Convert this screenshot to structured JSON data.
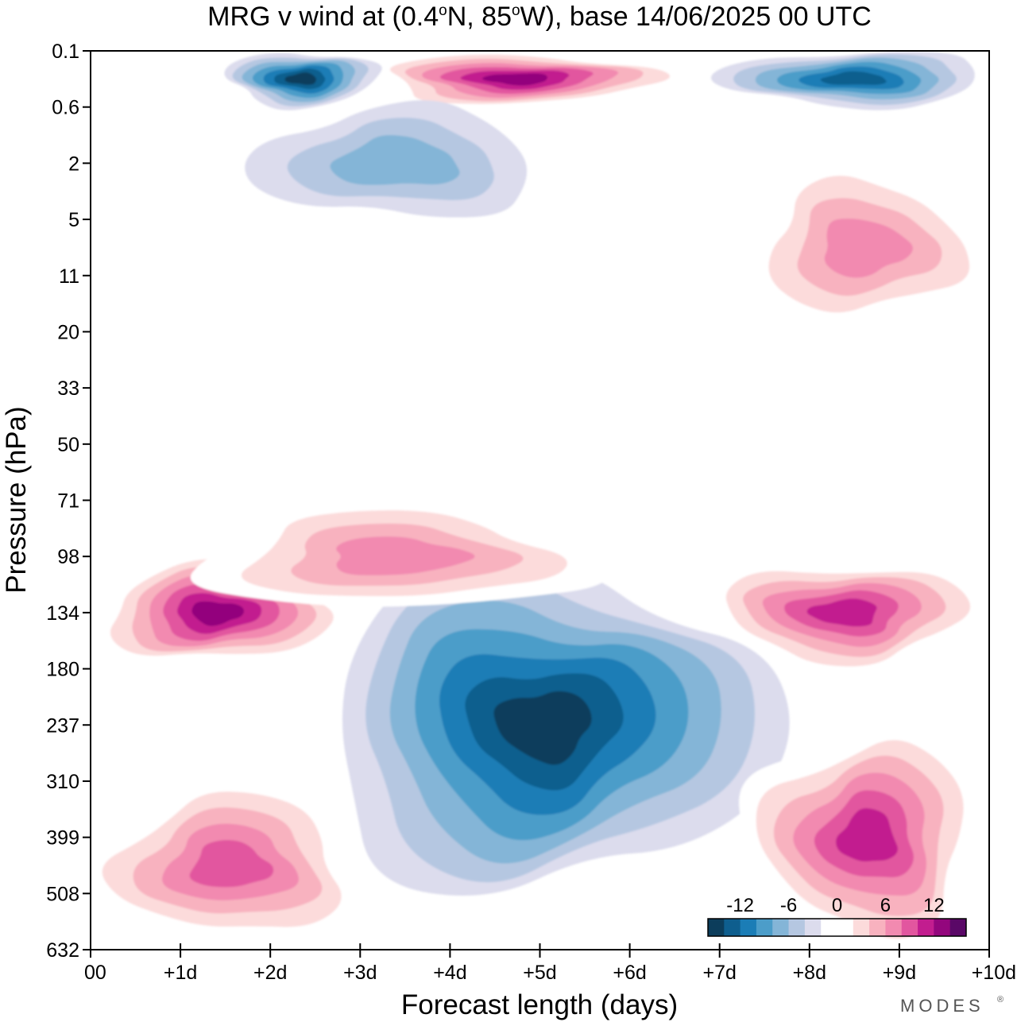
{
  "chart_data": {
    "type": "heatmap",
    "title_parts": {
      "prefix": "MRG v wind at (0.4",
      "deg1": "o",
      "mid": "N, 85",
      "deg2": "o",
      "suffix": "W),  base 14/06/2025  00 UTC"
    },
    "xlabel": "Forecast length (days)",
    "ylabel": "Pressure (hPa)",
    "x_ticks": [
      "00",
      "+1d",
      "+2d",
      "+3d",
      "+4d",
      "+5d",
      "+6d",
      "+7d",
      "+8d",
      "+9d",
      "+10d"
    ],
    "xlim": [
      0,
      10
    ],
    "y_ticks": [
      "0.1",
      "0.6",
      "2",
      "5",
      "11",
      "20",
      "33",
      "50",
      "71",
      "98",
      "134",
      "180",
      "237",
      "310",
      "399",
      "508",
      "632"
    ],
    "y_scale": "categorical pressure levels, 0.1 hPa at top to 632 hPa at bottom",
    "grid": false,
    "legend": {
      "position": "bottom-right",
      "labels": [
        "-12",
        "-6",
        "0",
        "6",
        "12"
      ],
      "colors": [
        "#0c3d5b",
        "#0e5e8e",
        "#1b7db6",
        "#4c9dc9",
        "#84b5d7",
        "#b5c7e1",
        "#dcdced",
        "#ffffff",
        "#ffffff",
        "#fcdbdb",
        "#f8b2bf",
        "#f28ab0",
        "#e2569f",
        "#c21d8f",
        "#93067d",
        "#5a0867"
      ]
    },
    "features": [
      {
        "sign": "positive",
        "peak": 14,
        "x_range_days": [
          0,
          2.8
        ],
        "p_range_hPa": [
          "98",
          "180"
        ],
        "label": "lower-stratosphere maximum"
      },
      {
        "sign": "negative",
        "peak": -14,
        "x_range_days": [
          2.5,
          7.6
        ],
        "p_range_hPa": [
          "98",
          "508"
        ],
        "label": "upper-troposphere minimum"
      },
      {
        "sign": "positive",
        "peak": 12,
        "x_range_days": [
          6.8,
          10
        ],
        "p_range_hPa": [
          "98",
          "180"
        ],
        "label": "lower-stratosphere maximum"
      },
      {
        "sign": "positive",
        "peak": 12,
        "x_range_days": [
          7.3,
          10
        ],
        "p_range_hPa": [
          "237",
          "632"
        ],
        "label": "upper-troposphere maximum"
      },
      {
        "sign": "positive",
        "peak": 10,
        "x_range_days": [
          0,
          3.1
        ],
        "p_range_hPa": [
          "310",
          "632"
        ],
        "label": "tropospheric maximum"
      },
      {
        "sign": "positive",
        "peak": 8,
        "x_range_days": [
          1.2,
          5.6
        ],
        "p_range_hPa": [
          "71",
          "134"
        ],
        "label": "stratospheric maximum"
      },
      {
        "sign": "positive",
        "peak": 15,
        "x_range_days": [
          3.0,
          6.5
        ],
        "p_range_hPa": [
          "0.1",
          "0.6"
        ],
        "label": "upper-level maximum"
      },
      {
        "sign": "negative",
        "peak": -14,
        "x_range_days": [
          1.5,
          3.2
        ],
        "p_range_hPa": [
          "0.1",
          "0.6"
        ],
        "label": "upper-level minimum"
      },
      {
        "sign": "negative",
        "peak": -12,
        "x_range_days": [
          7.0,
          10
        ],
        "p_range_hPa": [
          "0.1",
          "0.6"
        ],
        "label": "upper-level minimum"
      },
      {
        "sign": "negative",
        "peak": -5,
        "x_range_days": [
          1.8,
          5.0
        ],
        "p_range_hPa": [
          "0.6",
          "5"
        ],
        "label": "upper-level minimum"
      },
      {
        "sign": "positive",
        "peak": 8,
        "x_range_days": [
          7.2,
          10
        ],
        "p_range_hPa": [
          "2",
          "20"
        ],
        "label": "upper-level maximum"
      }
    ]
  },
  "brand": "MODES",
  "brand_mark": "®"
}
